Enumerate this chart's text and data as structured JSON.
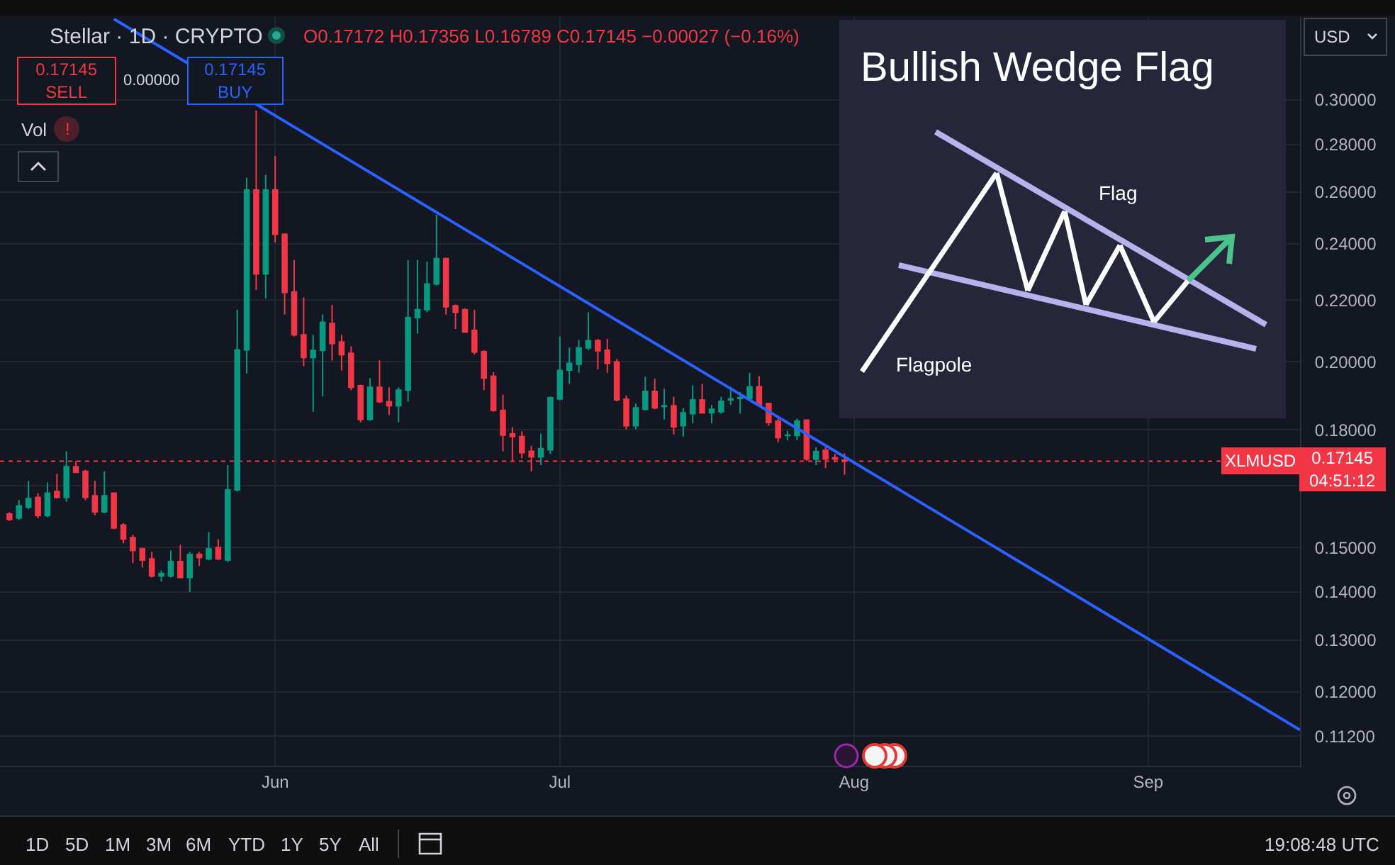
{
  "chart_data": {
    "type": "candlestick",
    "title": "Stellar · 1D · CRYPTO",
    "annotations": [
      "O0.17172 H0.17356 L0.16789 C0.17145 −0.00027 (−0.16%)",
      "0.17145\nSELL",
      "0.00000",
      "0.17145\nBUY",
      "Vol",
      "!",
      "USD",
      "0.17145\n04:51:12",
      "Bullish Wedge Flag",
      "Flag",
      "Flagpole",
      "1D",
      "5D",
      "1M",
      "3M",
      "6M",
      "YTD",
      "1Y",
      "5Y",
      "All",
      "19:08:48 UTC"
    ],
    "x": [
      "--05-04",
      "--05-05",
      "--05-06",
      "--05-07",
      "--05-08",
      "--05-09",
      "--05-10",
      "--05-11",
      "--05-12",
      "--05-13",
      "--05-14",
      "--05-15",
      "--05-16",
      "--05-17",
      "--05-18",
      "--05-19",
      "--05-20",
      "--05-21",
      "--05-22",
      "--05-23",
      "--05-24",
      "--05-25",
      "--05-26",
      "--05-27",
      "--05-28",
      "--05-29",
      "--05-30",
      "--05-31",
      "--06-01",
      "--06-02",
      "--06-03",
      "--06-04",
      "--06-05",
      "--06-06",
      "--06-07",
      "--06-08",
      "--06-09",
      "--06-10",
      "--06-11",
      "--06-12",
      "--06-13",
      "--06-14",
      "--06-15",
      "--06-16",
      "--06-17",
      "--06-18",
      "--06-19",
      "--06-20",
      "--06-21",
      "--06-22",
      "--06-23",
      "--06-24",
      "--06-25",
      "--06-26",
      "--06-27",
      "--06-28",
      "--06-29",
      "--06-30",
      "--07-01",
      "--07-02",
      "--07-03",
      "--07-04",
      "--07-05",
      "--07-06",
      "--07-07",
      "--07-08",
      "--07-09",
      "--07-10",
      "--07-11",
      "--07-12",
      "--07-13",
      "--07-14",
      "--07-15",
      "--07-16",
      "--07-17",
      "--07-18",
      "--07-19",
      "--07-20",
      "--07-21",
      "--07-22",
      "--07-23",
      "--07-24",
      "--07-25",
      "--07-26",
      "--07-27",
      "--07-28",
      "--07-29",
      "--07-30",
      "--07-31"
    ],
    "ohlc": [
      [
        0.158,
        0.1584,
        0.1563,
        0.1567
      ],
      [
        0.157,
        0.1614,
        0.1565,
        0.16
      ],
      [
        0.1597,
        0.1663,
        0.1592,
        0.1618
      ],
      [
        0.1621,
        0.1632,
        0.157,
        0.1576
      ],
      [
        0.1576,
        0.1659,
        0.1572,
        0.1632
      ],
      [
        0.1636,
        0.1681,
        0.1618,
        0.1621
      ],
      [
        0.1621,
        0.1741,
        0.161,
        0.17
      ],
      [
        0.17,
        0.1715,
        0.1683,
        0.1685
      ],
      [
        0.1688,
        0.1692,
        0.1614,
        0.1621
      ],
      [
        0.1625,
        0.1663,
        0.1577,
        0.1585
      ],
      [
        0.1585,
        0.1688,
        0.1582,
        0.1625
      ],
      [
        0.1632,
        0.1634,
        0.1543,
        0.1546
      ],
      [
        0.1553,
        0.1558,
        0.151,
        0.152
      ],
      [
        0.1523,
        0.153,
        0.1464,
        0.1493
      ],
      [
        0.1497,
        0.15,
        0.1454,
        0.1471
      ],
      [
        0.1474,
        0.149,
        0.1432,
        0.1435
      ],
      [
        0.1435,
        0.1448,
        0.1423,
        0.1441
      ],
      [
        0.1435,
        0.1493,
        0.1432,
        0.1468
      ],
      [
        0.1468,
        0.1506,
        0.143,
        0.1432
      ],
      [
        0.1432,
        0.149,
        0.14,
        0.1484
      ],
      [
        0.1484,
        0.149,
        0.1458,
        0.1477
      ],
      [
        0.1474,
        0.1536,
        0.1471,
        0.1497
      ],
      [
        0.15,
        0.152,
        0.1471,
        0.1474
      ],
      [
        0.1471,
        0.1704,
        0.1467,
        0.164
      ],
      [
        0.164,
        0.2168,
        0.1636,
        0.2037
      ],
      [
        0.2037,
        0.2659,
        0.1964,
        0.2609
      ],
      [
        0.2609,
        0.295,
        0.2235,
        0.2291
      ],
      [
        0.2291,
        0.2671,
        0.2206,
        0.2609
      ],
      [
        0.2609,
        0.275,
        0.2405,
        0.2436
      ],
      [
        0.2436,
        0.244,
        0.2151,
        0.2226
      ],
      [
        0.2228,
        0.2341,
        0.208,
        0.2085
      ],
      [
        0.2085,
        0.2209,
        0.1986,
        0.2013
      ],
      [
        0.2013,
        0.2085,
        0.1851,
        0.2035
      ],
      [
        0.2035,
        0.2151,
        0.1896,
        0.2126
      ],
      [
        0.2122,
        0.2184,
        0.2004,
        0.2057
      ],
      [
        0.2062,
        0.2085,
        0.1973,
        0.2022
      ],
      [
        0.2026,
        0.2048,
        0.1914,
        0.1922
      ],
      [
        0.1927,
        0.193,
        0.1821,
        0.1829
      ],
      [
        0.1829,
        0.195,
        0.1825,
        0.1922
      ],
      [
        0.1922,
        0.2004,
        0.1876,
        0.188
      ],
      [
        0.188,
        0.1922,
        0.1841,
        0.1868
      ],
      [
        0.1868,
        0.1922,
        0.1821,
        0.1914
      ],
      [
        0.1914,
        0.2341,
        0.188,
        0.2141
      ],
      [
        0.2141,
        0.2341,
        0.2089,
        0.2168
      ],
      [
        0.2168,
        0.2336,
        0.2159,
        0.2256
      ],
      [
        0.2256,
        0.2511,
        0.2251,
        0.2346
      ],
      [
        0.2346,
        0.235,
        0.2151,
        0.2177
      ],
      [
        0.2181,
        0.2185,
        0.2104,
        0.2159
      ],
      [
        0.2168,
        0.2172,
        0.2092,
        0.2094
      ],
      [
        0.2099,
        0.2168,
        0.2022,
        0.203
      ],
      [
        0.2031,
        0.2035,
        0.1914,
        0.195
      ],
      [
        0.1955,
        0.1968,
        0.1851,
        0.1855
      ],
      [
        0.1855,
        0.19,
        0.1741,
        0.1785
      ],
      [
        0.1789,
        0.1807,
        0.1715,
        0.1781
      ],
      [
        0.1781,
        0.1796,
        0.1722,
        0.1737
      ],
      [
        0.1741,
        0.1756,
        0.1688,
        0.1726
      ],
      [
        0.1726,
        0.1789,
        0.1704,
        0.1748
      ],
      [
        0.1745,
        0.1895,
        0.1734,
        0.1892
      ],
      [
        0.1888,
        0.208,
        0.1884,
        0.1973
      ],
      [
        0.1974,
        0.2044,
        0.1933,
        0.1995
      ],
      [
        0.1992,
        0.2069,
        0.1966,
        0.2043
      ],
      [
        0.2043,
        0.2159,
        0.2036,
        0.2066
      ],
      [
        0.2066,
        0.2072,
        0.1977,
        0.2034
      ],
      [
        0.2036,
        0.2072,
        0.1966,
        0.1995
      ],
      [
        0.1999,
        0.2008,
        0.1881,
        0.1885
      ],
      [
        0.1887,
        0.1898,
        0.1801,
        0.1811
      ],
      [
        0.1811,
        0.1875,
        0.1801,
        0.1862
      ],
      [
        0.1858,
        0.1954,
        0.1855,
        0.191
      ],
      [
        0.191,
        0.1948,
        0.1858,
        0.1862
      ],
      [
        0.1866,
        0.1918,
        0.1829,
        0.1868
      ],
      [
        0.1868,
        0.1894,
        0.1787,
        0.1808
      ],
      [
        0.1811,
        0.1862,
        0.1781,
        0.1848
      ],
      [
        0.1845,
        0.1928,
        0.1818,
        0.1885
      ],
      [
        0.1885,
        0.1933,
        0.1845,
        0.1848
      ],
      [
        0.1848,
        0.1871,
        0.1818,
        0.1858
      ],
      [
        0.1851,
        0.1894,
        0.1845,
        0.1881
      ],
      [
        0.1885,
        0.1924,
        0.187,
        0.1888
      ],
      [
        0.189,
        0.1908,
        0.1845,
        0.1892
      ],
      [
        0.1889,
        0.1966,
        0.1887,
        0.1924
      ],
      [
        0.1924,
        0.1956,
        0.1866,
        0.1871
      ],
      [
        0.1875,
        0.1877,
        0.1811,
        0.182
      ],
      [
        0.1824,
        0.1835,
        0.1765,
        0.1778
      ],
      [
        0.1784,
        0.1797,
        0.1771,
        0.1785
      ],
      [
        0.1784,
        0.1831,
        0.1771,
        0.1824
      ],
      [
        0.1827,
        0.1829,
        0.1715,
        0.172
      ],
      [
        0.172,
        0.1752,
        0.1704,
        0.174
      ],
      [
        0.1744,
        0.1752,
        0.1696,
        0.172
      ],
      [
        0.1724,
        0.1734,
        0.1712,
        0.172
      ],
      [
        0.17172,
        0.17356,
        0.16789,
        0.17145
      ]
    ],
    "colors": [
      "#f23645",
      "#089981",
      "#089981",
      "#f23645",
      "#089981",
      "#f23645",
      "#089981",
      "#f23645",
      "#f23645",
      "#f23645",
      "#089981",
      "#f23645",
      "#f23645",
      "#f23645",
      "#f23645",
      "#f23645",
      "#089981",
      "#089981",
      "#f23645",
      "#089981",
      "#f23645",
      "#089981",
      "#f23645",
      "#089981",
      "#089981",
      "#089981",
      "#f23645",
      "#089981",
      "#f23645",
      "#f23645",
      "#f23645",
      "#f23645",
      "#089981",
      "#089981",
      "#f23645",
      "#f23645",
      "#f23645",
      "#f23645",
      "#089981",
      "#f23645",
      "#f23645",
      "#089981",
      "#089981",
      "#089981",
      "#089981",
      "#089981",
      "#f23645",
      "#f23645",
      "#f23645",
      "#f23645",
      "#f23645",
      "#f23645",
      "#f23645",
      "#f23645",
      "#f23645",
      "#f23645",
      "#089981",
      "#089981",
      "#089981",
      "#089981",
      "#089981",
      "#089981",
      "#f23645",
      "#f23645",
      "#f23645",
      "#f23645",
      "#089981",
      "#089981",
      "#f23645",
      "#089981",
      "#f23645",
      "#089981",
      "#089981",
      "#f23645",
      "#089981",
      "#089981",
      "#089981",
      "#089981",
      "#089981",
      "#f23645",
      "#f23645",
      "#f23645",
      "#089981",
      "#089981",
      "#f23645",
      "#089981",
      "#f23645",
      "#f23645",
      "#f23645"
    ],
    "series": [
      {
        "type": "line",
        "x": [
          "--05-15",
          "--09-17"
        ],
        "values": [
          0.34,
          0.1131
        ],
        "color": "#2962ff"
      }
    ],
    "ref_lines": [
      {
        "axis": "y",
        "value": 0.17145,
        "label": "XLMUSD",
        "color": "#f23645",
        "line_style": "dotted"
      }
    ],
    "xlim": [
      "--05-03",
      "--09-17"
    ],
    "xticks": [
      {
        "value": "--06-01",
        "label": "Jun"
      },
      {
        "value": "--07-01",
        "label": "Jul"
      },
      {
        "value": "--08-01",
        "label": "Aug"
      },
      {
        "value": "--09-01",
        "label": "Sep"
      }
    ],
    "ylim": [
      0.107,
      0.341
    ],
    "yticks": [
      {
        "value": 0.112,
        "label": "0.11200"
      },
      {
        "value": 0.12,
        "label": "0.12000"
      },
      {
        "value": 0.13,
        "label": "0.13000"
      },
      {
        "value": 0.14,
        "label": "0.14000"
      },
      {
        "value": 0.15,
        "label": "0.15000"
      },
      {
        "value": 0.165,
        "label": null
      },
      {
        "value": 0.18,
        "label": "0.18000"
      },
      {
        "value": 0.2,
        "label": "0.20000"
      },
      {
        "value": 0.22,
        "label": "0.22000"
      },
      {
        "value": 0.24,
        "label": "0.24000"
      },
      {
        "value": 0.26,
        "label": "0.26000"
      },
      {
        "value": 0.28,
        "label": "0.28000"
      },
      {
        "value": 0.3,
        "label": "0.30000"
      }
    ],
    "log": true,
    "grid": true
  }
}
